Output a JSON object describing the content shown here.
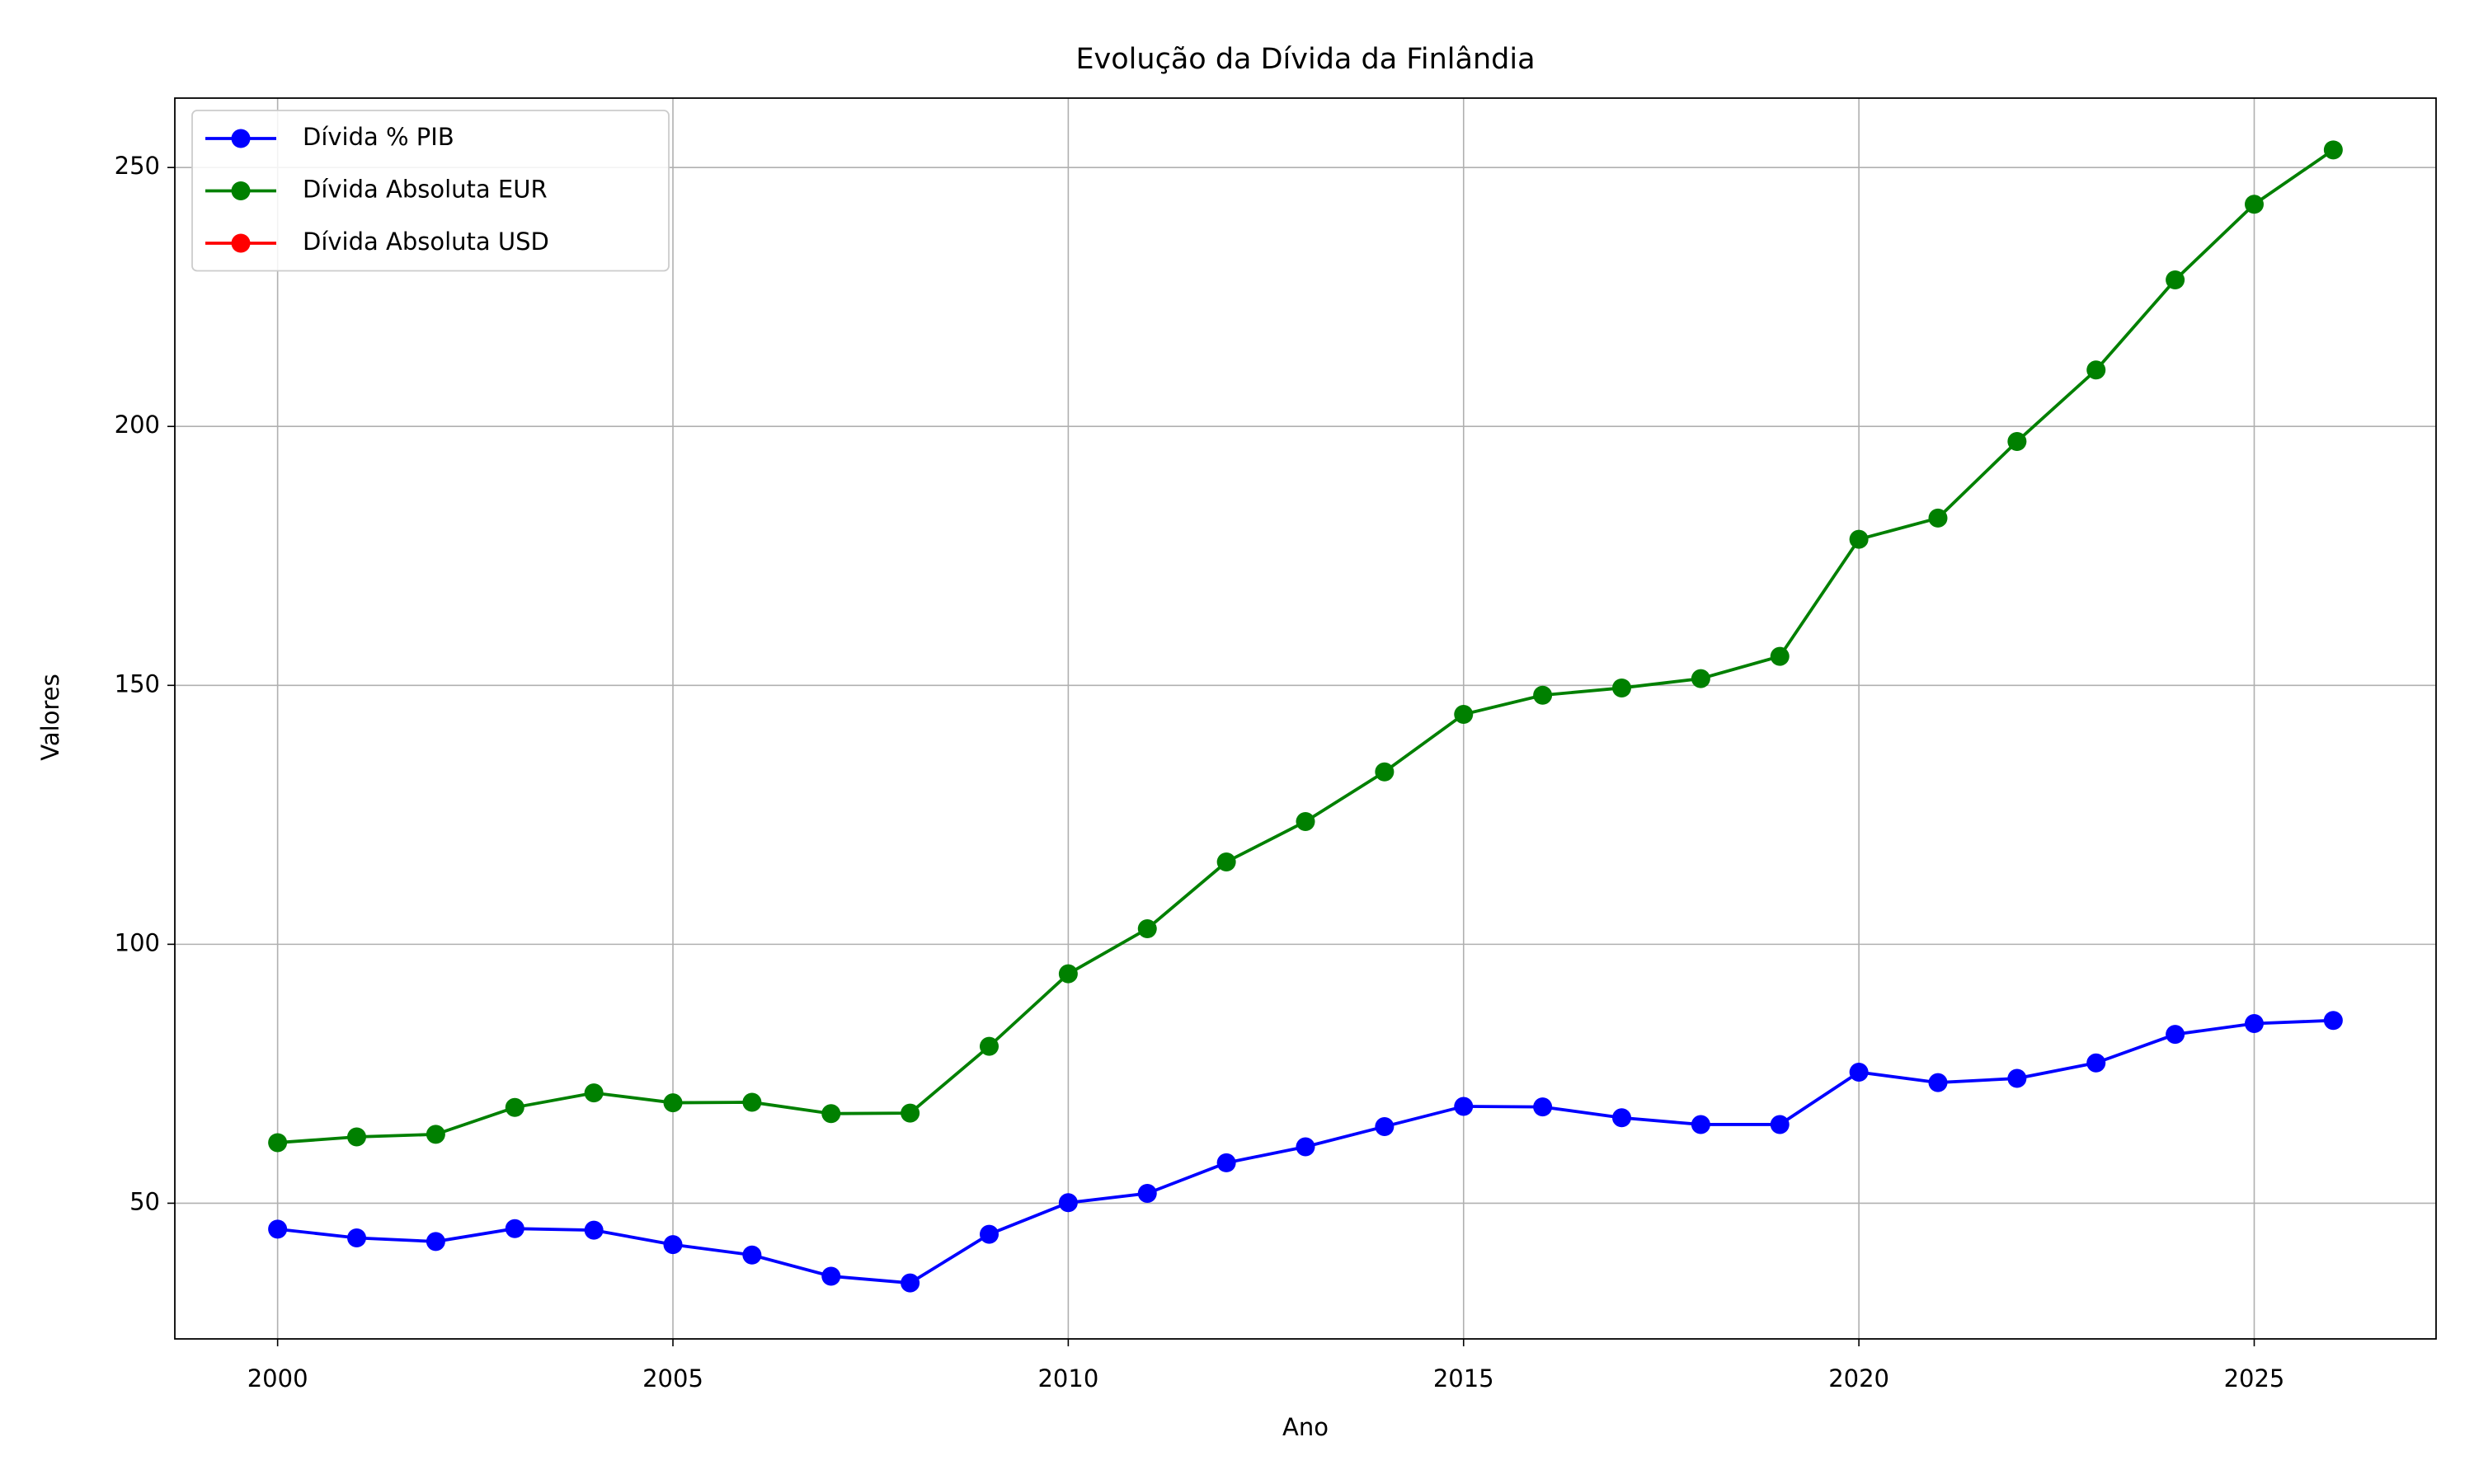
{
  "chart_data": {
    "type": "line",
    "title": "Evolução da Dívida da Finlândia",
    "x_label": "Ano",
    "y_label": "Valores",
    "x": [
      2000,
      2001,
      2002,
      2003,
      2004,
      2005,
      2006,
      2007,
      2008,
      2009,
      2010,
      2011,
      2012,
      2013,
      2014,
      2015,
      2016,
      2017,
      2018,
      2019,
      2020,
      2021,
      2022,
      2023,
      2024,
      2025,
      2026
    ],
    "series": [
      {
        "name": "Dívida % PIB",
        "color": "#0000ff",
        "values": [
          45.0,
          43.3,
          42.6,
          45.1,
          44.8,
          42.0,
          40.0,
          35.9,
          34.6,
          44.0,
          50.1,
          51.9,
          57.8,
          60.9,
          64.8,
          68.7,
          68.6,
          66.5,
          65.2,
          65.2,
          75.3,
          73.3,
          74.1,
          77.1,
          82.6,
          84.7,
          85.3
        ]
      },
      {
        "name": "Dívida Absoluta EUR",
        "color": "#008000",
        "values": [
          61.7,
          62.8,
          63.3,
          68.5,
          71.3,
          69.4,
          69.5,
          67.3,
          67.4,
          80.3,
          94.3,
          103.0,
          115.9,
          123.7,
          133.3,
          144.4,
          148.1,
          149.5,
          151.3,
          155.6,
          178.2,
          182.3,
          197.1,
          210.9,
          228.3,
          242.9,
          253.4
        ]
      },
      {
        "name": "Dívida Absoluta USD",
        "color": "#ff0000",
        "values": [
          null,
          null,
          null,
          null,
          null,
          null,
          null,
          null,
          null,
          null,
          null,
          null,
          null,
          null,
          null,
          null,
          null,
          null,
          null,
          null,
          null,
          null,
          null,
          null,
          null,
          null,
          null
        ]
      }
    ],
    "xlim": [
      1998.7,
      2027.3
    ],
    "xticks": [
      2000,
      2005,
      2010,
      2015,
      2020,
      2025
    ],
    "ylim": [
      23.8,
      263.4
    ],
    "yticks": [
      50,
      100,
      150,
      200,
      250
    ],
    "grid": true,
    "legend": "upper left"
  }
}
